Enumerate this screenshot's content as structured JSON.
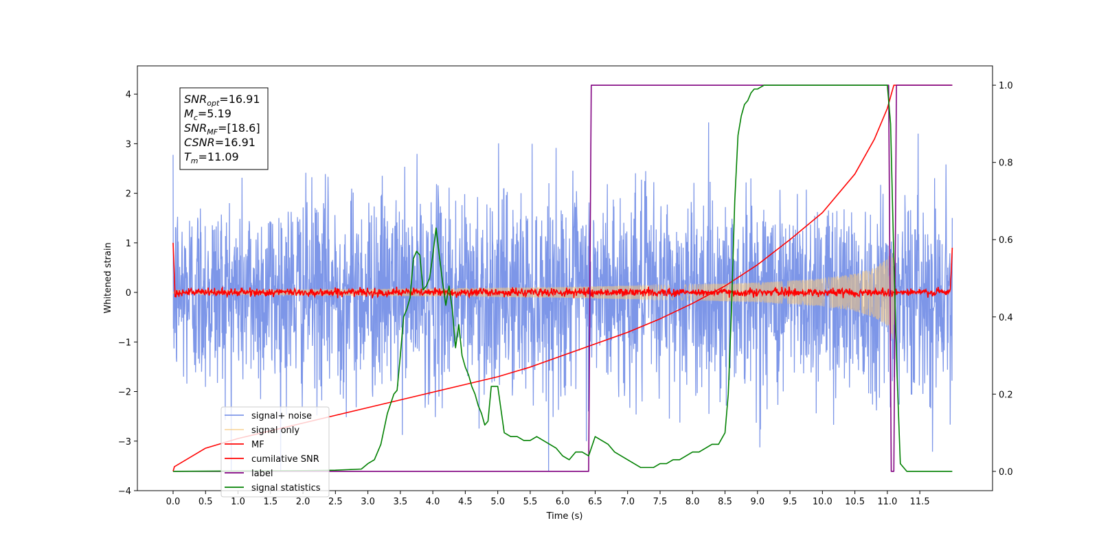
{
  "chart_data": {
    "type": "line",
    "title": "",
    "xlabel": "Time (s)",
    "ylabel": "Whitened strain",
    "xlim": [
      -0.55,
      12.62
    ],
    "ylim": [
      -4,
      4.57
    ],
    "y2lim": [
      -0.05,
      1.05
    ],
    "x_ticks": [
      0.0,
      0.5,
      1.0,
      1.5,
      2.0,
      2.5,
      3.0,
      3.5,
      4.0,
      4.5,
      5.0,
      5.5,
      6.0,
      6.5,
      7.0,
      7.5,
      8.0,
      8.5,
      9.0,
      9.5,
      10.0,
      10.5,
      11.0,
      11.5
    ],
    "x_tick_labels": [
      "0.0",
      "0.5",
      "1.0",
      "1.5",
      "2.0",
      "2.5",
      "3.0",
      "3.5",
      "4.0",
      "4.5",
      "5.0",
      "5.5",
      "6.0",
      "6.5",
      "7.0",
      "7.5",
      "8.0",
      "8.5",
      "9.0",
      "9.5",
      "10.0",
      "10.5",
      "11.0",
      "11.5"
    ],
    "y_ticks": [
      -4,
      -3,
      -2,
      -1,
      0,
      1,
      2,
      3,
      4
    ],
    "y_tick_labels": [
      "−4",
      "−3",
      "−2",
      "−1",
      "0",
      "1",
      "2",
      "3",
      "4"
    ],
    "y2_ticks": [
      0.0,
      0.2,
      0.4,
      0.6,
      0.8,
      1.0
    ],
    "y2_tick_labels": [
      "0.0",
      "0.2",
      "0.4",
      "0.6",
      "0.8",
      "1.0"
    ],
    "grid": false,
    "legend_position": "lower-left",
    "info_box": {
      "lines": [
        {
          "sym": "SNR",
          "sub": "opt",
          "val": "=16.91"
        },
        {
          "sym": "M",
          "sub": "c",
          "val": "=5.19"
        },
        {
          "sym": "SNR",
          "sub": "MF",
          "val": "=[18.6]"
        },
        {
          "sym": "CSNR",
          "sub": "",
          "val": "=16.91"
        },
        {
          "sym": "T",
          "sub": "m",
          "val": "=11.09"
        }
      ]
    },
    "series": [
      {
        "name": "signal+ noise",
        "color": "#7690e7",
        "axis": "left",
        "noise_sigma": 1.0,
        "t_start": 0.0,
        "t_end": 12.0,
        "approx_range": [
          -3.6,
          4.2
        ]
      },
      {
        "name": "signal only",
        "color": "#f7c87a",
        "axis": "left",
        "envelope": {
          "t": [
            0.0,
            2.0,
            4.0,
            6.0,
            8.0,
            9.0,
            10.0,
            10.5,
            10.8,
            11.0,
            11.05,
            11.09,
            11.12
          ],
          "amp": [
            0.05,
            0.06,
            0.08,
            0.11,
            0.16,
            0.2,
            0.28,
            0.38,
            0.5,
            0.68,
            0.8,
            0.95,
            0.0
          ]
        }
      },
      {
        "name": "MF",
        "color": "#ff0000",
        "axis": "left",
        "baseline": 0.0,
        "start_value": 1.0,
        "end_value": 0.9
      },
      {
        "name": "cumilative SNR",
        "color": "#ff0000",
        "axis": "right",
        "x": [
          0.0,
          0.02,
          0.5,
          1.0,
          1.5,
          2.0,
          2.5,
          3.0,
          3.5,
          4.0,
          4.5,
          5.0,
          5.5,
          6.0,
          6.5,
          7.0,
          7.5,
          8.0,
          8.5,
          9.0,
          9.5,
          10.0,
          10.5,
          10.8,
          11.0,
          11.1,
          11.2,
          12.0
        ],
        "y": [
          0.0,
          0.012,
          0.06,
          0.085,
          0.105,
          0.125,
          0.145,
          0.165,
          0.185,
          0.205,
          0.225,
          0.245,
          0.27,
          0.3,
          0.33,
          0.36,
          0.395,
          0.435,
          0.48,
          0.535,
          0.6,
          0.67,
          0.77,
          0.86,
          0.94,
          1.0,
          1.0,
          1.0
        ]
      },
      {
        "name": "label",
        "color": "#800080",
        "axis": "right",
        "x": [
          0.0,
          6.4,
          6.44,
          11.02,
          11.06,
          11.1,
          11.14,
          12.0
        ],
        "y": [
          0.0,
          0.0,
          1.0,
          1.0,
          0.0,
          0.0,
          1.0,
          1.0
        ]
      },
      {
        "name": "signal statistics",
        "color": "#008000",
        "axis": "right",
        "x": [
          0.0,
          1.0,
          2.0,
          2.5,
          2.9,
          3.0,
          3.1,
          3.2,
          3.3,
          3.4,
          3.45,
          3.5,
          3.55,
          3.6,
          3.65,
          3.7,
          3.75,
          3.8,
          3.85,
          3.9,
          3.95,
          4.0,
          4.05,
          4.1,
          4.15,
          4.2,
          4.25,
          4.3,
          4.35,
          4.4,
          4.45,
          4.5,
          4.55,
          4.6,
          4.65,
          4.7,
          4.75,
          4.8,
          4.85,
          4.9,
          5.0,
          5.1,
          5.2,
          5.3,
          5.4,
          5.5,
          5.6,
          5.7,
          5.8,
          5.9,
          6.0,
          6.1,
          6.2,
          6.3,
          6.4,
          6.5,
          6.6,
          6.7,
          6.8,
          6.9,
          7.0,
          7.1,
          7.2,
          7.3,
          7.4,
          7.5,
          7.6,
          7.7,
          7.8,
          7.9,
          8.0,
          8.1,
          8.2,
          8.3,
          8.4,
          8.5,
          8.55,
          8.6,
          8.65,
          8.7,
          8.75,
          8.8,
          8.85,
          8.9,
          8.95,
          9.0,
          9.1,
          9.2,
          9.3,
          9.5,
          10.0,
          10.5,
          10.8,
          11.0,
          11.05,
          11.1,
          11.15,
          11.2,
          11.3,
          11.5,
          12.0
        ],
        "y": [
          0.0,
          0.001,
          0.002,
          0.003,
          0.006,
          0.02,
          0.03,
          0.07,
          0.15,
          0.2,
          0.21,
          0.3,
          0.4,
          0.42,
          0.45,
          0.55,
          0.57,
          0.56,
          0.47,
          0.48,
          0.5,
          0.56,
          0.63,
          0.56,
          0.49,
          0.43,
          0.48,
          0.42,
          0.32,
          0.38,
          0.3,
          0.27,
          0.25,
          0.22,
          0.2,
          0.17,
          0.15,
          0.12,
          0.13,
          0.22,
          0.22,
          0.1,
          0.09,
          0.09,
          0.08,
          0.08,
          0.09,
          0.08,
          0.07,
          0.06,
          0.04,
          0.03,
          0.05,
          0.05,
          0.04,
          0.09,
          0.08,
          0.07,
          0.05,
          0.04,
          0.03,
          0.02,
          0.01,
          0.01,
          0.01,
          0.02,
          0.02,
          0.03,
          0.03,
          0.04,
          0.05,
          0.05,
          0.06,
          0.07,
          0.07,
          0.1,
          0.2,
          0.42,
          0.7,
          0.87,
          0.92,
          0.95,
          0.96,
          0.98,
          0.99,
          0.99,
          1.0,
          1.0,
          1.0,
          1.0,
          1.0,
          1.0,
          1.0,
          1.0,
          0.9,
          0.55,
          0.25,
          0.02,
          0.0,
          0.0,
          0.0
        ]
      }
    ]
  }
}
